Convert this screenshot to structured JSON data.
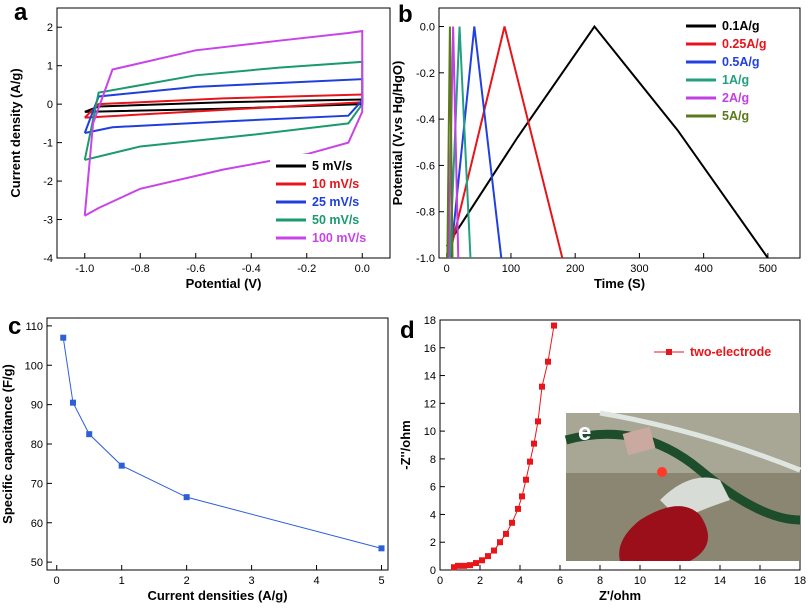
{
  "chart_data": [
    {
      "type": "line",
      "panel_label": "a",
      "x_label": "Potential (V)",
      "y_label": "Current density (A/g)",
      "xlim": [
        -1.1,
        0.1
      ],
      "ylim": [
        -4,
        2.5
      ],
      "xticks": [
        {
          "value": -1.0,
          "label": "-1.0"
        },
        -0.8,
        -0.6,
        -0.4,
        -0.2,
        {
          "value": 0,
          "label": "0.0"
        }
      ],
      "yticks": [
        -4,
        -3,
        -2,
        -1,
        0,
        1,
        2
      ],
      "legend": "lower right",
      "series": [
        {
          "name": "5 mV/s",
          "color": "#000000",
          "x": [
            -1.0,
            -0.95,
            -0.5,
            0.0,
            0.0,
            -0.5,
            -1.0
          ],
          "values": [
            -0.2,
            -0.06,
            0.05,
            0.12,
            0.0,
            -0.12,
            -0.2
          ]
        },
        {
          "name": "10 mV/s",
          "color": "#e8141b",
          "x": [
            -1.0,
            -0.95,
            -0.5,
            0.0,
            0.0,
            -0.5,
            -1.0
          ],
          "values": [
            -0.35,
            0.0,
            0.15,
            0.25,
            0.05,
            -0.15,
            -0.35
          ]
        },
        {
          "name": "25 mV/s",
          "color": "#1f3fdc",
          "x": [
            -1.0,
            -0.95,
            -0.6,
            -0.3,
            0.0,
            0.0,
            -0.05,
            -0.5,
            -0.9,
            -1.0
          ],
          "values": [
            -0.75,
            0.2,
            0.45,
            0.55,
            0.65,
            0.1,
            -0.3,
            -0.45,
            -0.6,
            -0.75
          ]
        },
        {
          "name": "50 mV/s",
          "color": "#1a9a6e",
          "x": [
            -1.0,
            -0.95,
            -0.6,
            -0.3,
            0.0,
            0.0,
            -0.05,
            -0.4,
            -0.8,
            -1.0
          ],
          "values": [
            -1.45,
            0.3,
            0.75,
            0.95,
            1.1,
            0.0,
            -0.5,
            -0.8,
            -1.1,
            -1.45
          ]
        },
        {
          "name": "100 mV/s",
          "color": "#c844e8",
          "x": [
            -1.0,
            -0.97,
            -0.9,
            -0.6,
            -0.3,
            -0.05,
            0.0,
            0.0,
            -0.05,
            -0.2,
            -0.5,
            -0.8,
            -0.95,
            -1.0
          ],
          "values": [
            -2.9,
            -0.5,
            0.9,
            1.4,
            1.65,
            1.85,
            1.9,
            -0.2,
            -1.0,
            -1.3,
            -1.7,
            -2.2,
            -2.7,
            -2.9
          ]
        }
      ]
    },
    {
      "type": "line",
      "panel_label": "b",
      "x_label": "Time (S)",
      "y_label": "Potential (V,vs Hg/HgO)",
      "xlim": [
        -12,
        550
      ],
      "ylim": [
        -1.0,
        0.08
      ],
      "xticks": [
        0,
        100,
        200,
        300,
        400,
        500
      ],
      "yticks": [
        {
          "value": -1.0,
          "label": "-1.0"
        },
        -0.8,
        -0.6,
        -0.4,
        -0.2,
        {
          "value": 0,
          "label": "0.0"
        }
      ],
      "legend": "upper right",
      "series": [
        {
          "name": "0.1A/g",
          "color": "#000000",
          "x": [
            0,
            110,
            230,
            360,
            500
          ],
          "values": [
            -0.95,
            -0.48,
            0.0,
            -0.45,
            -1.0
          ]
        },
        {
          "name": "0.25A/g",
          "color": "#e8141b",
          "x": [
            3,
            90,
            180
          ],
          "values": [
            -1.0,
            0.0,
            -1.0
          ]
        },
        {
          "name": "0.5A/g",
          "color": "#2240e0",
          "x": [
            6,
            43,
            85
          ],
          "values": [
            -1.0,
            0.0,
            -1.0
          ]
        },
        {
          "name": "1A/g",
          "color": "#23a080",
          "x": [
            5,
            20,
            37
          ],
          "values": [
            -1.0,
            0.0,
            -1.0
          ]
        },
        {
          "name": "2A/g",
          "color": "#c040e0",
          "x": [
            3,
            10,
            18
          ],
          "values": [
            -1.0,
            0.0,
            -1.0
          ]
        },
        {
          "name": "5A/g",
          "color": "#5a7a1a",
          "x": [
            1,
            5,
            9
          ],
          "values": [
            -1.0,
            0.0,
            -1.0
          ]
        }
      ]
    },
    {
      "type": "line",
      "panel_label": "c",
      "x_label": "Current densities (A/g)",
      "y_label": "Specific capacitance (F/g)",
      "xlim": [
        -0.15,
        5.1
      ],
      "ylim": [
        48,
        112
      ],
      "xticks": [
        0,
        1,
        2,
        3,
        4,
        5
      ],
      "yticks": [
        50,
        60,
        70,
        80,
        90,
        100,
        110
      ],
      "markers": "square",
      "series": [
        {
          "color": "#2f5fd8",
          "x": [
            0.1,
            0.25,
            0.5,
            1,
            2,
            5
          ],
          "values": [
            107,
            90.5,
            82.5,
            74.5,
            66.5,
            53.5
          ]
        }
      ]
    },
    {
      "type": "line",
      "panel_label": "d",
      "inset_label": "e",
      "x_label": "Z'/ohm",
      "y_label": "-Z''/ohm",
      "xlim": [
        0,
        18
      ],
      "ylim": [
        0,
        18
      ],
      "xticks": [
        0,
        2,
        4,
        6,
        8,
        10,
        12,
        14,
        16,
        18
      ],
      "yticks": [
        0,
        2,
        4,
        6,
        8,
        10,
        12,
        14,
        16,
        18
      ],
      "markers": "square",
      "legend": "upper right",
      "series": [
        {
          "name": "two-electrode",
          "color": "#e8161b",
          "x": [
            0.7,
            0.9,
            1.2,
            1.5,
            1.8,
            2.1,
            2.4,
            2.7,
            3.0,
            3.3,
            3.6,
            3.9,
            4.1,
            4.3,
            4.5,
            4.7,
            4.9,
            5.1,
            5.4,
            5.7
          ],
          "values": [
            0.2,
            0.3,
            0.3,
            0.35,
            0.5,
            0.7,
            1.0,
            1.4,
            2.0,
            2.6,
            3.4,
            4.4,
            5.3,
            6.5,
            7.8,
            9.1,
            10.7,
            13.2,
            15.0,
            17.6
          ]
        }
      ]
    }
  ]
}
